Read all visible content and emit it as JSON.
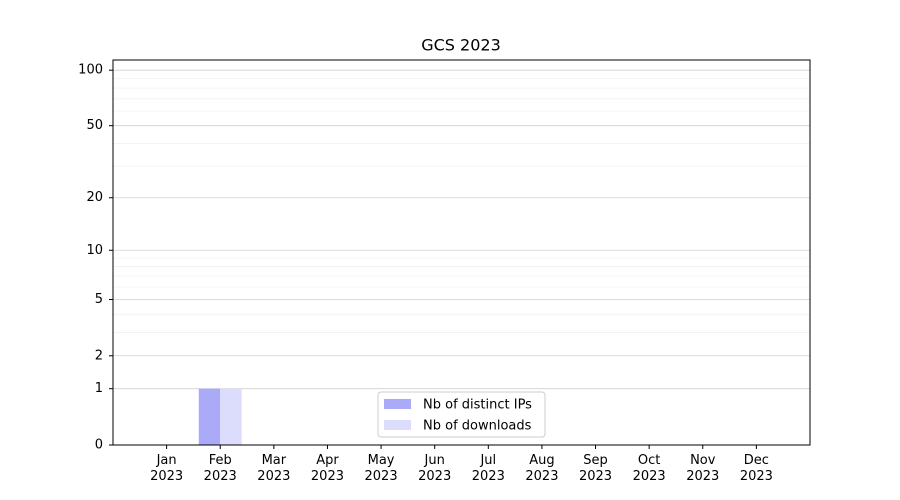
{
  "chart_data": {
    "type": "bar",
    "title": "GCS 2023",
    "categories": [
      "Jan\n2023",
      "Feb\n2023",
      "Mar\n2023",
      "Apr\n2023",
      "May\n2023",
      "Jun\n2023",
      "Jul\n2023",
      "Aug\n2023",
      "Sep\n2023",
      "Oct\n2023",
      "Nov\n2023",
      "Dec\n2023"
    ],
    "series": [
      {
        "name": "Nb of distinct IPs",
        "color": "#aaaaf8",
        "values": [
          0,
          1,
          0,
          0,
          0,
          0,
          0,
          0,
          0,
          0,
          0,
          0
        ]
      },
      {
        "name": "Nb of downloads",
        "color": "#dcdcfc",
        "values": [
          0,
          1,
          0,
          0,
          0,
          0,
          0,
          0,
          0,
          0,
          0,
          0
        ]
      }
    ],
    "yscale": "log1p",
    "ylim": [
      0,
      113.5
    ],
    "yticks": [
      0,
      1,
      2,
      5,
      10,
      20,
      50,
      100
    ],
    "minor_yticks": [
      3,
      4,
      6,
      7,
      8,
      9,
      30,
      40,
      60,
      70,
      80,
      90
    ],
    "grid": true,
    "legend": "lower center"
  }
}
